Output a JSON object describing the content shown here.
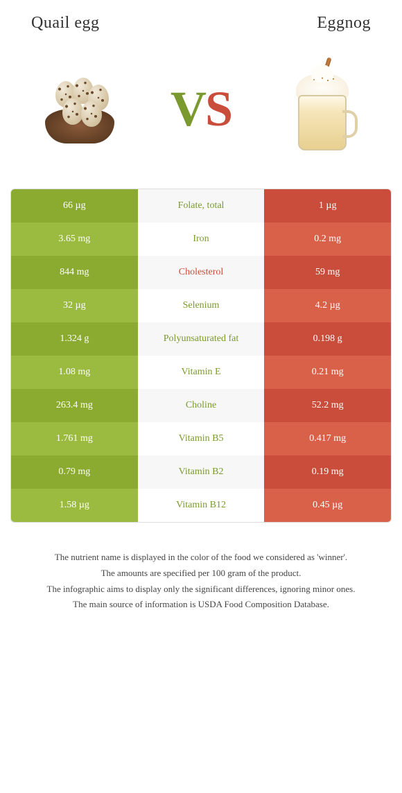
{
  "header": {
    "left_title": "Quail egg",
    "right_title": "Eggnog",
    "vs_v": "V",
    "vs_s": "S"
  },
  "colors": {
    "left_odd": "#8aab2f",
    "left_even": "#9abb3f",
    "right_odd": "#c94d3a",
    "right_even": "#d9614a",
    "mid_winner_left": "#7a9a2f",
    "mid_winner_right": "#c94d3a",
    "neutral_text": "#444444"
  },
  "rows": [
    {
      "left": "66 µg",
      "label": "Folate, total",
      "right": "1 µg",
      "winner": "left"
    },
    {
      "left": "3.65 mg",
      "label": "Iron",
      "right": "0.2 mg",
      "winner": "left"
    },
    {
      "left": "844 mg",
      "label": "Cholesterol",
      "right": "59 mg",
      "winner": "right"
    },
    {
      "left": "32 µg",
      "label": "Selenium",
      "right": "4.2 µg",
      "winner": "left"
    },
    {
      "left": "1.324 g",
      "label": "Polyunsaturated fat",
      "right": "0.198 g",
      "winner": "left"
    },
    {
      "left": "1.08 mg",
      "label": "Vitamin E",
      "right": "0.21 mg",
      "winner": "left"
    },
    {
      "left": "263.4 mg",
      "label": "Choline",
      "right": "52.2 mg",
      "winner": "left"
    },
    {
      "left": "1.761 mg",
      "label": "Vitamin B5",
      "right": "0.417 mg",
      "winner": "left"
    },
    {
      "left": "0.79 mg",
      "label": "Vitamin B2",
      "right": "0.19 mg",
      "winner": "left"
    },
    {
      "left": "1.58 µg",
      "label": "Vitamin B12",
      "right": "0.45 µg",
      "winner": "left"
    }
  ],
  "footer": {
    "l1": "The nutrient name is displayed in the color of the food we considered as 'winner'.",
    "l2": "The amounts are specified per 100 gram of the product.",
    "l3": "The infographic aims to display only the significant differences, ignoring minor ones.",
    "l4": "The main source of information is USDA Food Composition Database."
  }
}
